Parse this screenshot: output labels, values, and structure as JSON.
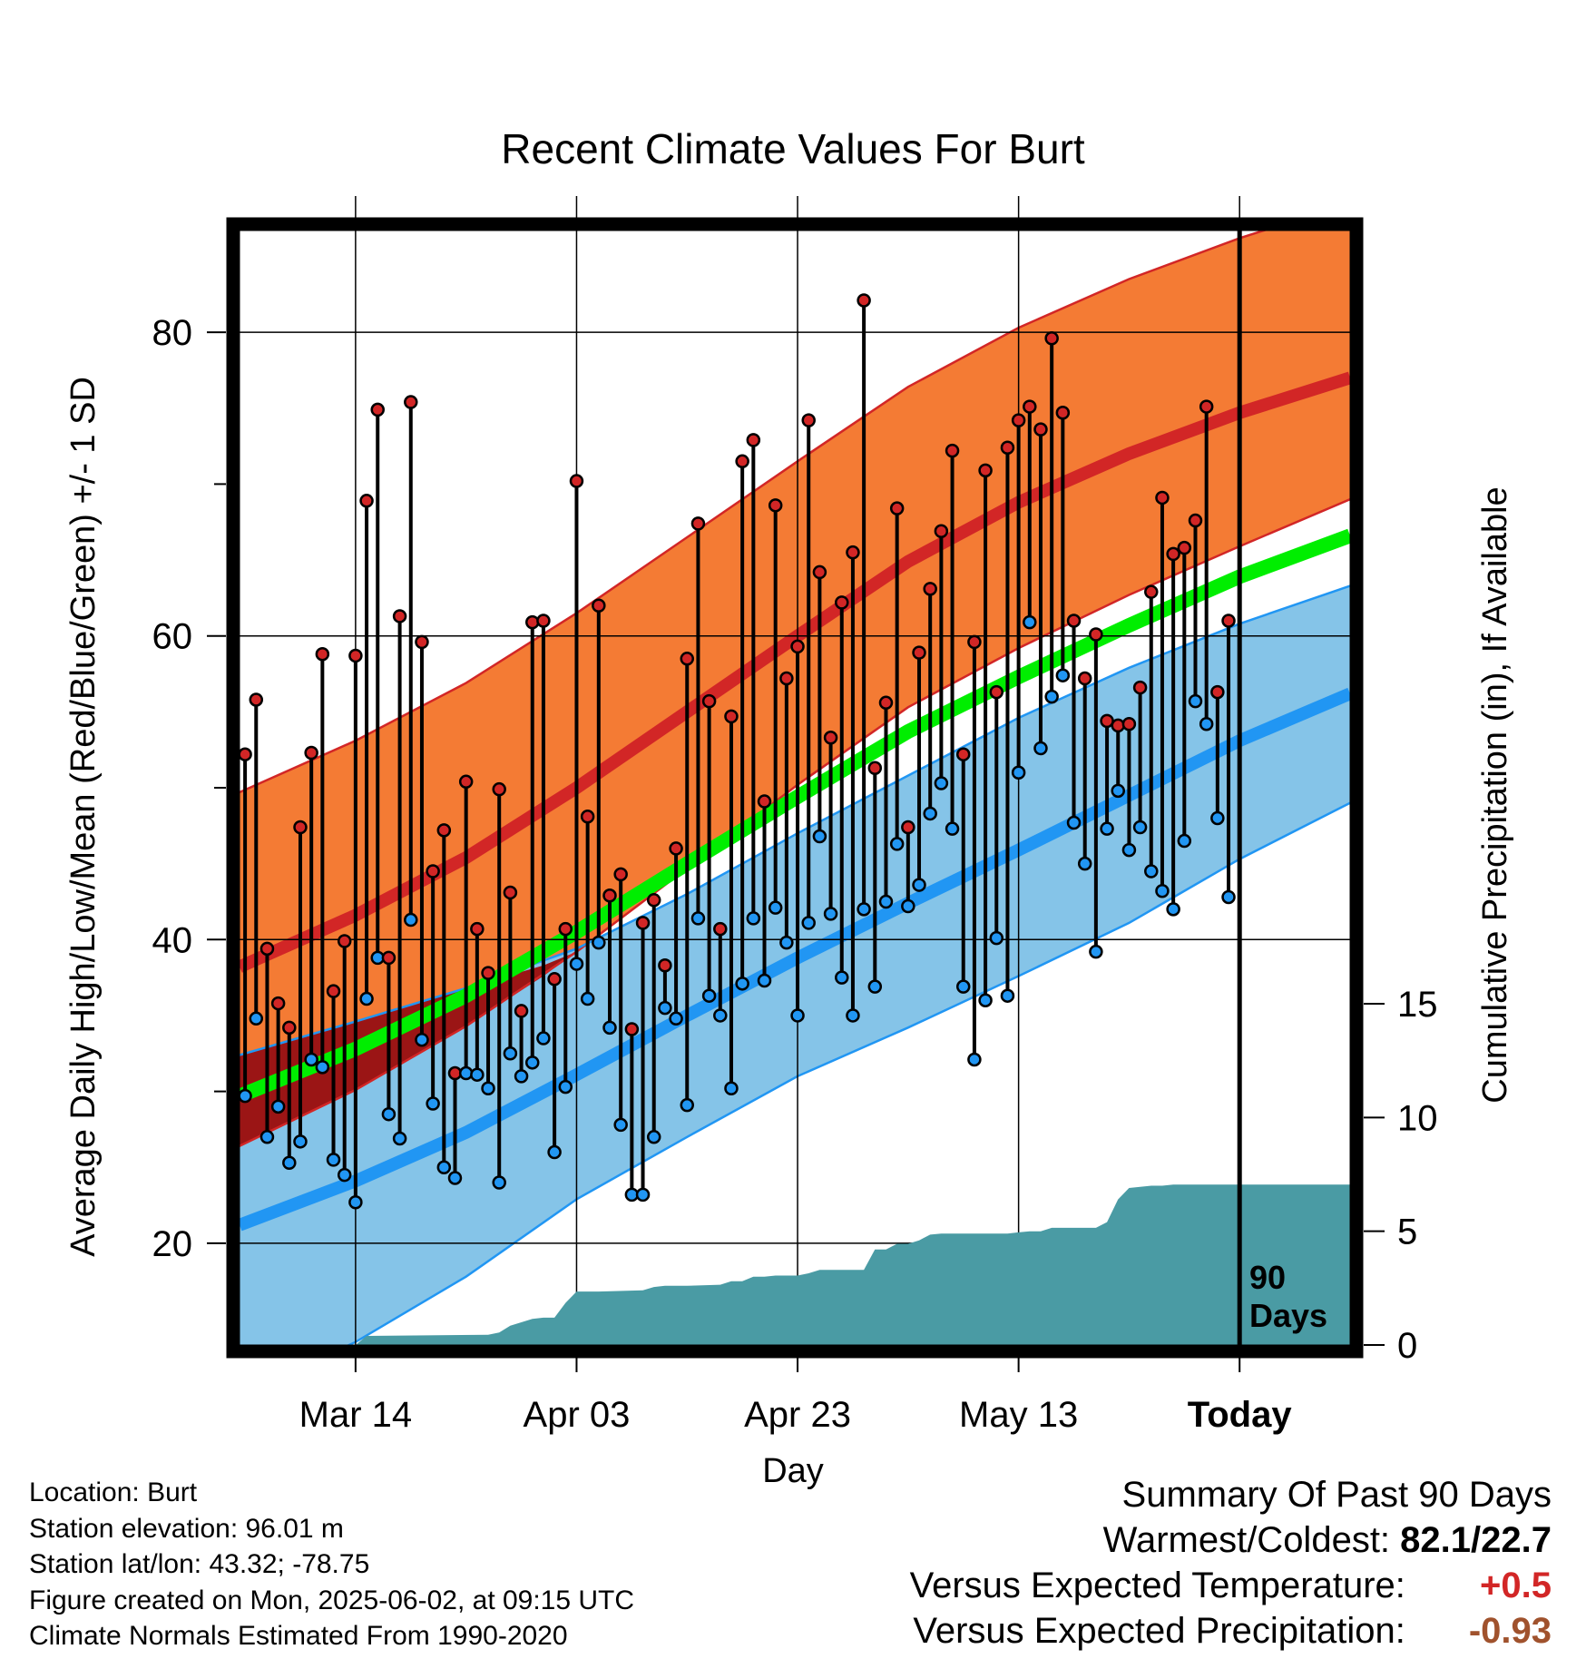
{
  "chart_data": {
    "type": "line",
    "title": "Recent Climate Values For Burt",
    "xlabel": "Day",
    "ylabel": "Average Daily High/Low/Mean (Red/Blue/Green) +/- 1 SD",
    "y2label": "Cumulative Precipitation (in), If Available",
    "x_ticks": [
      "Mar 14",
      "Apr 03",
      "Apr 23",
      "May 13",
      "Today"
    ],
    "y_ticks": [
      20,
      40,
      60,
      80
    ],
    "y_minor_ticks": [
      30,
      50,
      70
    ],
    "y2_ticks": [
      0,
      5,
      10,
      15
    ],
    "xlim": [
      -10.5,
      90
    ],
    "ylim": [
      13.3,
      86.7
    ],
    "y2_axis_top_value": 15,
    "days_marker": {
      "x": 80,
      "label_line1": "90",
      "label_line2": "Days"
    },
    "colors": {
      "high_band": "#f47b34",
      "high_mean": "#d22626",
      "high_edge": "#d22626",
      "low_band": "#85c4e8",
      "low_mean": "#2196f3",
      "low_edge": "#2196f3",
      "mean_line": "#00ee00",
      "early_overlap": "#9b1515",
      "precip": "#4a9ba4",
      "high_dot": "#d22626",
      "low_dot": "#2196f3"
    },
    "normal_high_mean": {
      "x": [
        -10.5,
        0,
        10,
        20,
        30,
        40,
        50,
        60,
        70,
        80,
        90
      ],
      "y": [
        38.2,
        41.6,
        45.4,
        50.0,
        55.0,
        60.0,
        64.9,
        68.8,
        72.0,
        74.7,
        77.0
      ]
    },
    "normal_high_sd": 11.5,
    "normal_high_sd_lower": [
      26.4,
      30.1,
      34.3,
      39.2,
      44.7,
      50.2,
      55.3,
      59.2,
      62.7,
      65.9,
      69.0
    ],
    "normal_low_mean": {
      "x": [
        -10.5,
        0,
        10,
        20,
        30,
        40,
        50,
        60,
        70,
        80,
        90
      ],
      "y": [
        21.2,
        24.1,
        27.3,
        31.1,
        35.0,
        38.8,
        42.4,
        45.9,
        49.5,
        53.1,
        56.2
      ]
    },
    "normal_low_sd_upper": [
      32.4,
      34.6,
      36.8,
      39.4,
      43.0,
      47.0,
      50.8,
      54.6,
      57.9,
      60.8,
      63.3
    ],
    "normal_low_sd_lower": [
      10.0,
      13.5,
      17.8,
      22.9,
      27.0,
      31.0,
      34.2,
      37.6,
      41.1,
      45.3,
      49.0
    ],
    "normal_mean": {
      "x": [
        -10.5,
        0,
        10,
        20,
        30,
        40,
        50,
        60,
        70,
        80,
        90
      ],
      "y": [
        29.7,
        32.8,
        36.3,
        40.5,
        45.0,
        49.4,
        53.7,
        57.3,
        60.7,
        63.9,
        66.6
      ]
    },
    "series": [
      {
        "name": "Daily High",
        "x": [
          -10,
          -9,
          -8,
          -7,
          -6,
          -5,
          -4,
          -3,
          -2,
          -1,
          0,
          1,
          2,
          3,
          4,
          5,
          6,
          7,
          8,
          9,
          10,
          11,
          12,
          13,
          14,
          15,
          16,
          17,
          18,
          19,
          20,
          21,
          22,
          23,
          24,
          25,
          26,
          27,
          28,
          29,
          30,
          31,
          32,
          33,
          34,
          35,
          36,
          37,
          38,
          39,
          40,
          41,
          42,
          43,
          44,
          45,
          46,
          47,
          48,
          49,
          50,
          51,
          52,
          53,
          54,
          55,
          56,
          57,
          58,
          59,
          60,
          61,
          62,
          63,
          64,
          65,
          66,
          67,
          68,
          69,
          70,
          71,
          72,
          73,
          74,
          75,
          76,
          77,
          78,
          79
        ],
        "y": [
          52.2,
          55.8,
          39.4,
          35.8,
          34.2,
          47.4,
          52.3,
          58.8,
          36.6,
          39.9,
          58.7,
          68.9,
          74.9,
          38.8,
          61.3,
          75.4,
          59.6,
          44.5,
          47.2,
          31.2,
          50.4,
          40.7,
          37.8,
          49.9,
          43.1,
          35.3,
          60.9,
          61.0,
          37.4,
          40.7,
          70.2,
          48.1,
          62.0,
          42.9,
          44.3,
          34.1,
          41.1,
          42.6,
          38.3,
          46.0,
          58.5,
          67.4,
          55.7,
          40.7,
          54.7,
          71.5,
          72.9,
          49.1,
          68.6,
          57.2,
          59.3,
          74.2,
          64.2,
          53.3,
          62.2,
          65.5,
          82.1,
          51.3,
          55.6,
          68.4,
          47.4,
          58.9,
          63.1,
          66.9,
          72.2,
          52.2,
          59.6,
          70.9,
          56.3,
          72.4,
          74.2,
          75.1,
          73.6,
          79.6,
          74.7,
          61.0,
          57.2,
          60.1,
          54.4,
          54.1,
          54.2,
          56.6,
          62.9,
          69.1,
          65.4,
          65.8,
          67.6,
          75.1,
          56.3,
          61.0
        ]
      },
      {
        "name": "Daily Low",
        "x": [
          -10,
          -9,
          -8,
          -7,
          -6,
          -5,
          -4,
          -3,
          -2,
          -1,
          0,
          1,
          2,
          3,
          4,
          5,
          6,
          7,
          8,
          9,
          10,
          11,
          12,
          13,
          14,
          15,
          16,
          17,
          18,
          19,
          20,
          21,
          22,
          23,
          24,
          25,
          26,
          27,
          28,
          29,
          30,
          31,
          32,
          33,
          34,
          35,
          36,
          37,
          38,
          39,
          40,
          41,
          42,
          43,
          44,
          45,
          46,
          47,
          48,
          49,
          50,
          51,
          52,
          53,
          54,
          55,
          56,
          57,
          58,
          59,
          60,
          61,
          62,
          63,
          64,
          65,
          66,
          67,
          68,
          69,
          70,
          71,
          72,
          73,
          74,
          75,
          76,
          77,
          78,
          79
        ],
        "y": [
          29.7,
          34.8,
          27.0,
          29.0,
          25.3,
          26.7,
          32.1,
          31.6,
          25.5,
          24.5,
          22.7,
          36.1,
          38.8,
          28.5,
          26.9,
          41.3,
          33.4,
          29.2,
          25.0,
          24.3,
          31.2,
          31.1,
          30.2,
          24.0,
          32.5,
          31.0,
          31.9,
          33.5,
          26.0,
          30.3,
          38.4,
          36.1,
          39.8,
          34.2,
          27.8,
          23.2,
          23.2,
          27.0,
          35.5,
          34.8,
          29.1,
          41.4,
          36.3,
          35.0,
          30.2,
          37.1,
          41.4,
          37.3,
          42.1,
          39.8,
          35.0,
          41.1,
          46.8,
          41.7,
          37.5,
          35.0,
          42.0,
          36.9,
          42.5,
          46.3,
          42.2,
          43.6,
          48.3,
          50.3,
          47.3,
          36.9,
          32.1,
          36.0,
          40.1,
          36.3,
          51.0,
          60.9,
          52.6,
          56.0,
          57.4,
          47.7,
          45.0,
          39.2,
          47.3,
          49.8,
          45.9,
          47.4,
          44.5,
          43.2,
          42.0,
          46.5,
          55.7,
          54.2,
          48.0,
          42.8
        ]
      }
    ],
    "precip": {
      "x": [
        0,
        1,
        12,
        13,
        14,
        16,
        17,
        18,
        19,
        20,
        21,
        22,
        26,
        27,
        28,
        29,
        30,
        33,
        34,
        35,
        36,
        37,
        38,
        39,
        40,
        41,
        42,
        43,
        44,
        45,
        46,
        47,
        48,
        49,
        50,
        51,
        52,
        53,
        54,
        55,
        56,
        57,
        58,
        59,
        60,
        61,
        62,
        63,
        64,
        65,
        66,
        67,
        68,
        69,
        70,
        71,
        72,
        73,
        74,
        75,
        76,
        77,
        78,
        79,
        80,
        90
      ],
      "y": [
        0,
        0.4,
        0.45,
        0.55,
        0.85,
        1.15,
        1.2,
        1.2,
        1.85,
        2.35,
        2.35,
        2.35,
        2.4,
        2.55,
        2.6,
        2.6,
        2.6,
        2.65,
        2.8,
        2.8,
        3.0,
        3.0,
        3.05,
        3.05,
        3.05,
        3.15,
        3.3,
        3.3,
        3.3,
        3.3,
        3.3,
        4.2,
        4.2,
        4.45,
        4.45,
        4.6,
        4.85,
        4.9,
        4.9,
        4.9,
        4.9,
        4.9,
        4.9,
        4.9,
        4.95,
        5.0,
        5.0,
        5.15,
        5.15,
        5.15,
        5.15,
        5.15,
        5.4,
        6.4,
        6.9,
        6.95,
        7.0,
        7.0,
        7.05,
        7.05,
        7.05,
        7.05,
        7.05,
        7.05,
        7.05,
        7.05
      ]
    }
  },
  "info": {
    "location": "Location: Burt",
    "elevation": "Station elevation: 96.01 m",
    "latlon": "Station lat/lon: 43.32; -78.75",
    "created": "Figure created on Mon, 2025-06-02, at 09:15 UTC",
    "normals": "Climate Normals Estimated From 1990-2020"
  },
  "summary": {
    "heading": "Summary Of Past 90 Days",
    "warm_cold_label": "Warmest/Coldest:",
    "warm_cold_value": "82.1/22.7",
    "temp_label": "Versus Expected Temperature:",
    "temp_value": "+0.5",
    "temp_color": "#d22626",
    "precip_label": "Versus Expected Precipitation:",
    "precip_value": "-0.93",
    "precip_color": "#a0522d"
  }
}
